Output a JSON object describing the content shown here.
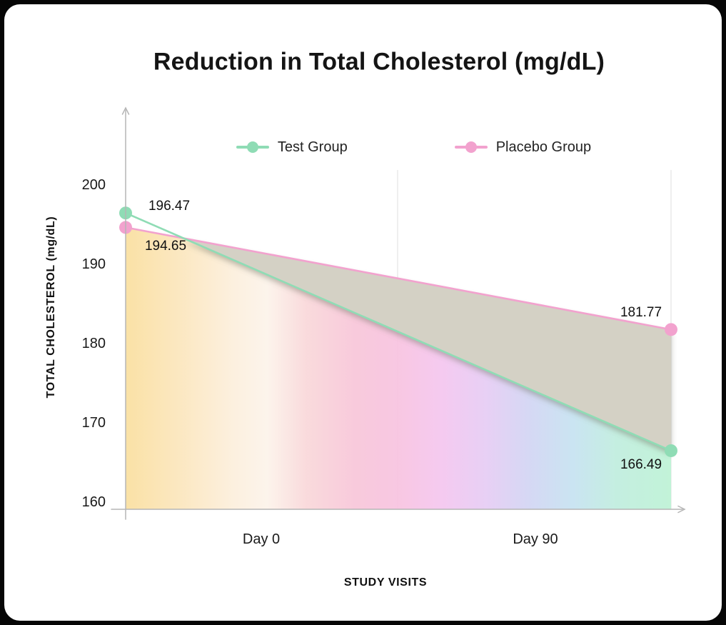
{
  "title": "Reduction in Total Cholesterol (mg/dL)",
  "colors": {
    "frame": "#060606",
    "card": "#ffffff",
    "axis": "#b5b5b5",
    "grid": "#e4e4e4",
    "text": "#141414",
    "between_fill": "#d4d1c5"
  },
  "chart_data": {
    "type": "line",
    "title": "Reduction in Total Cholesterol (mg/dL)",
    "xlabel": "STUDY VISITS",
    "ylabel": "TOTAL CHOLESTEROL (mg/dL)",
    "categories": [
      "Day 0",
      "Day 90"
    ],
    "series": [
      {
        "name": "Test Group",
        "color": "#8fdcb5",
        "values": [
          196.47,
          166.49
        ]
      },
      {
        "name": "Placebo Group",
        "color": "#f2a2ce",
        "values": [
          194.65,
          181.77
        ]
      }
    ],
    "yticks": [
      160,
      170,
      180,
      190,
      200
    ],
    "ylim": [
      159.1,
      209.5
    ],
    "grid": "vertical-only",
    "legend_position": "top",
    "axis_arrows": true,
    "between_fill_color": "#d4d1c5",
    "area_gradient_stops": [
      {
        "offset": 0.0,
        "color": "#fadf9f"
      },
      {
        "offset": 0.1,
        "color": "#fbe6bd"
      },
      {
        "offset": 0.2,
        "color": "#fcefdd"
      },
      {
        "offset": 0.26,
        "color": "#fcf3ea"
      },
      {
        "offset": 0.33,
        "color": "#f9d8da"
      },
      {
        "offset": 0.42,
        "color": "#f8c6d9"
      },
      {
        "offset": 0.5,
        "color": "#f8c3e0"
      },
      {
        "offset": 0.58,
        "color": "#f4c6ef"
      },
      {
        "offset": 0.66,
        "color": "#e6ccf4"
      },
      {
        "offset": 0.74,
        "color": "#d2d5f3"
      },
      {
        "offset": 0.82,
        "color": "#c6e2f1"
      },
      {
        "offset": 0.9,
        "color": "#c0edde"
      },
      {
        "offset": 1.0,
        "color": "#bdf2d5"
      }
    ]
  }
}
